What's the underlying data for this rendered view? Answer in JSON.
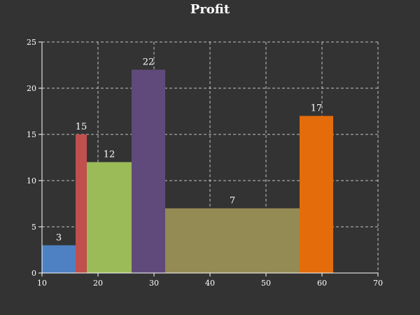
{
  "chart_data": {
    "type": "bar",
    "title": "Profit",
    "xlabel": "",
    "ylabel": "",
    "xlim": [
      10,
      70
    ],
    "ylim": [
      0,
      25
    ],
    "x_ticks": [
      10,
      20,
      30,
      40,
      50,
      60,
      70
    ],
    "y_ticks": [
      0,
      5,
      10,
      15,
      20,
      25
    ],
    "grid": true,
    "bars": [
      {
        "x_start": 10,
        "x_end": 16,
        "value": 3,
        "label": "3",
        "color": "#4e81c4"
      },
      {
        "x_start": 16,
        "x_end": 18,
        "value": 15,
        "label": "15",
        "color": "#c0504d"
      },
      {
        "x_start": 18,
        "x_end": 26,
        "value": 12,
        "label": "12",
        "color": "#9bbb59"
      },
      {
        "x_start": 26,
        "x_end": 32,
        "value": 22,
        "label": "22",
        "color": "#604a7b"
      },
      {
        "x_start": 32,
        "x_end": 56,
        "value": 7,
        "label": "7",
        "color": "#948a54"
      },
      {
        "x_start": 56,
        "x_end": 62,
        "value": 17,
        "label": "17",
        "color": "#e46c0a"
      }
    ]
  }
}
